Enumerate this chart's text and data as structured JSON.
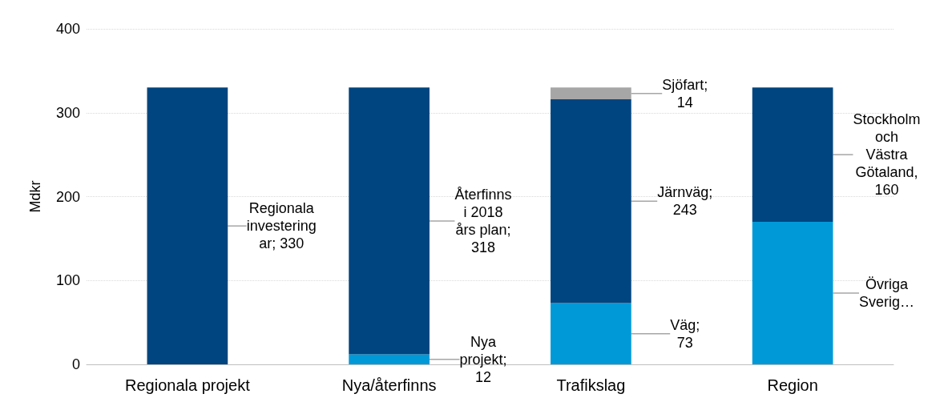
{
  "chart_data": {
    "type": "bar",
    "stacked": true,
    "ylabel": "Mdkr",
    "categories": [
      "Regionala projekt",
      "Nya/återfinns",
      "Trafikslag",
      "Region"
    ],
    "series": [
      {
        "colors": [
          "#00457f",
          "#0099d8",
          "#0099d8",
          "#0099d8"
        ],
        "values": [
          330,
          12,
          73,
          170
        ],
        "value_labels": [
          "Regionala\ninvestering\nar; 330",
          "Nya\nprojekt;\n12",
          "Väg;\n73",
          "Övriga\nSverig…"
        ]
      },
      {
        "color": "#00457f",
        "values": [
          null,
          318,
          243,
          160
        ],
        "value_labels": [
          null,
          "Återfinns\ni 2018\nårs plan;\n318",
          "Järnväg;\n243",
          "Stockholm\noch\nVästra\nGötaland,\n160"
        ]
      },
      {
        "color": "#a6a6a6",
        "values": [
          null,
          null,
          14,
          null
        ],
        "value_labels": [
          null,
          null,
          "Sjöfart;\n14",
          null
        ]
      }
    ],
    "ylim": [
      0,
      400
    ],
    "yticks": [
      0,
      100,
      200,
      300,
      400
    ],
    "grid": "y"
  }
}
